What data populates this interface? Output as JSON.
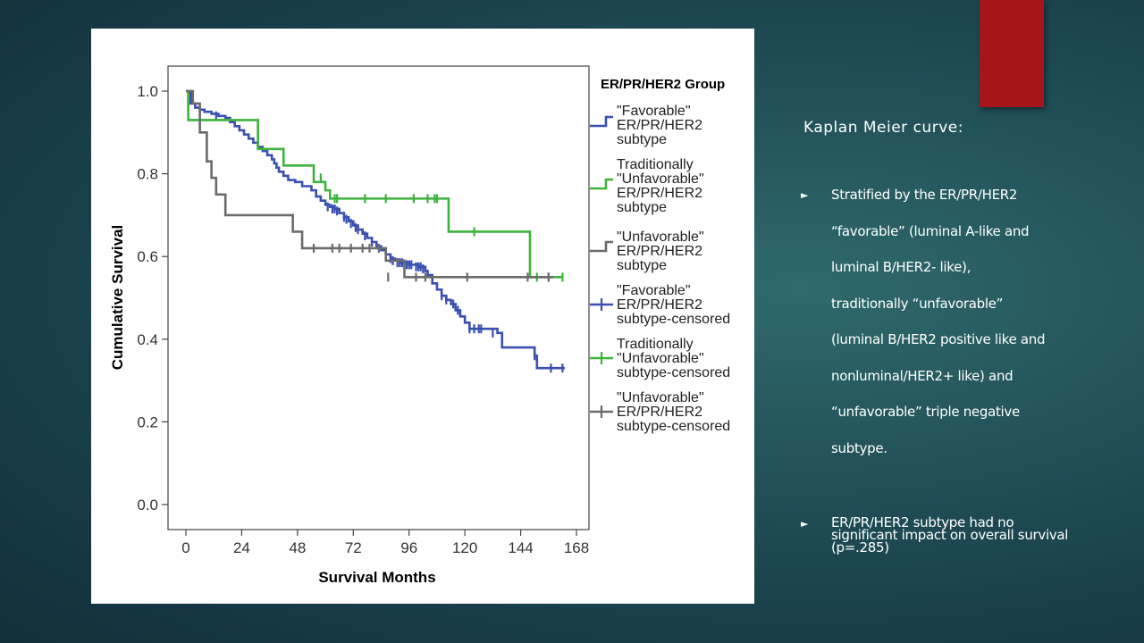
{
  "slide": {
    "title": "Kaplan Meier curve:",
    "bullets": [
      "Stratified by the ER/PR/HER2 “favorable” (luminal A-like and luminal B/HER2- like), traditionally “unfavorable” (luminal B/HER2 positive like and nonluminal/HER2+ like) and “unfavorable” triple negative subtype.",
      "ER/PR/HER2 subtype had no significant impact on overall survival (p=.285)"
    ],
    "accent_color": "#a5161a"
  },
  "chart_data": {
    "type": "line",
    "title": "",
    "xlabel": "Survival Months",
    "ylabel": "Cumulative Survival",
    "xlim": [
      0,
      168
    ],
    "ylim": [
      0,
      1.0
    ],
    "xticks": [
      "0",
      "24",
      "48",
      "72",
      "96",
      "120",
      "144",
      "168"
    ],
    "yticks": [
      "0.0",
      "0.2",
      "0.4",
      "0.6",
      "0.8",
      "1.0"
    ],
    "legend": {
      "title": "ER/PR/HER2 Group",
      "placement": "right",
      "entries": [
        {
          "label": "\"Favorable\" ER/PR/HER2 subtype",
          "color": "#3a50b0",
          "style": "line"
        },
        {
          "label": "Traditionally \"Unfavorable\" ER/PR/HER2 subtype",
          "color": "#3cb33c",
          "style": "line"
        },
        {
          "label": "\"Unfavorable\" ER/PR/HER2 subtype",
          "color": "#6b6b6b",
          "style": "line"
        },
        {
          "label": "\"Favorable\" ER/PR/HER2 subtype-censored",
          "color": "#3a50b0",
          "style": "censor"
        },
        {
          "label": "Traditionally \"Unfavorable\" subtype-censored",
          "color": "#3cb33c",
          "style": "censor"
        },
        {
          "label": "\"Unfavorable\" ER/PR/HER2 subtype-censored",
          "color": "#6b6b6b",
          "style": "censor"
        }
      ]
    },
    "series": [
      {
        "name": "\"Favorable\" ER/PR/HER2 subtype",
        "color": "#3a50b0",
        "steps": [
          [
            0,
            1.0
          ],
          [
            2,
            0.97
          ],
          [
            4,
            0.96
          ],
          [
            6,
            0.955
          ],
          [
            8,
            0.95
          ],
          [
            11,
            0.945
          ],
          [
            14,
            0.94
          ],
          [
            17,
            0.935
          ],
          [
            19,
            0.925
          ],
          [
            21,
            0.915
          ],
          [
            23,
            0.905
          ],
          [
            25,
            0.895
          ],
          [
            27,
            0.885
          ],
          [
            29,
            0.875
          ],
          [
            31,
            0.865
          ],
          [
            33,
            0.855
          ],
          [
            35,
            0.845
          ],
          [
            37,
            0.835
          ],
          [
            38,
            0.825
          ],
          [
            39,
            0.815
          ],
          [
            40,
            0.805
          ],
          [
            42,
            0.795
          ],
          [
            44,
            0.785
          ],
          [
            47,
            0.78
          ],
          [
            50,
            0.77
          ],
          [
            54,
            0.76
          ],
          [
            56,
            0.745
          ],
          [
            58,
            0.735
          ],
          [
            60,
            0.725
          ],
          [
            62,
            0.72
          ],
          [
            64,
            0.715
          ],
          [
            66,
            0.705
          ],
          [
            68,
            0.695
          ],
          [
            70,
            0.685
          ],
          [
            72,
            0.675
          ],
          [
            74,
            0.665
          ],
          [
            76,
            0.655
          ],
          [
            78,
            0.645
          ],
          [
            80,
            0.635
          ],
          [
            82,
            0.625
          ],
          [
            84,
            0.615
          ],
          [
            86,
            0.605
          ],
          [
            88,
            0.595
          ],
          [
            90,
            0.59
          ],
          [
            92,
            0.585
          ],
          [
            96,
            0.58
          ],
          [
            100,
            0.575
          ],
          [
            103,
            0.565
          ],
          [
            104,
            0.555
          ],
          [
            106,
            0.535
          ],
          [
            108,
            0.52
          ],
          [
            110,
            0.505
          ],
          [
            112,
            0.495
          ],
          [
            114,
            0.485
          ],
          [
            116,
            0.47
          ],
          [
            118,
            0.455
          ],
          [
            120,
            0.44
          ],
          [
            122,
            0.425
          ],
          [
            134,
            0.415
          ],
          [
            136,
            0.38
          ],
          [
            150,
            0.36
          ],
          [
            151,
            0.33
          ],
          [
            163,
            0.33
          ]
        ],
        "censored": [
          [
            13,
            0.94
          ],
          [
            61,
            0.72
          ],
          [
            63,
            0.715
          ],
          [
            64,
            0.715
          ],
          [
            65,
            0.71
          ],
          [
            68,
            0.695
          ],
          [
            69,
            0.69
          ],
          [
            71,
            0.68
          ],
          [
            73,
            0.67
          ],
          [
            74,
            0.665
          ],
          [
            77,
            0.65
          ],
          [
            80,
            0.635
          ],
          [
            86,
            0.605
          ],
          [
            88,
            0.595
          ],
          [
            89,
            0.59
          ],
          [
            91,
            0.585
          ],
          [
            92,
            0.585
          ],
          [
            93,
            0.585
          ],
          [
            94,
            0.58
          ],
          [
            95,
            0.58
          ],
          [
            96,
            0.58
          ],
          [
            97,
            0.58
          ],
          [
            99,
            0.575
          ],
          [
            100,
            0.575
          ],
          [
            101,
            0.575
          ],
          [
            102,
            0.57
          ],
          [
            110,
            0.505
          ],
          [
            112,
            0.495
          ],
          [
            115,
            0.485
          ],
          [
            117,
            0.47
          ],
          [
            122,
            0.425
          ],
          [
            124,
            0.425
          ],
          [
            126,
            0.425
          ],
          [
            127,
            0.425
          ],
          [
            132,
            0.415
          ],
          [
            150,
            0.36
          ],
          [
            157,
            0.33
          ],
          [
            162,
            0.33
          ]
        ]
      },
      {
        "name": "Traditionally \"Unfavorable\" ER/PR/HER2 subtype",
        "color": "#3cb33c",
        "steps": [
          [
            0,
            1.0
          ],
          [
            1,
            0.93
          ],
          [
            10,
            0.93
          ],
          [
            31,
            0.86
          ],
          [
            42,
            0.82
          ],
          [
            55,
            0.78
          ],
          [
            60,
            0.76
          ],
          [
            62,
            0.74
          ],
          [
            113,
            0.66
          ],
          [
            148,
            0.55
          ],
          [
            162,
            0.55
          ]
        ],
        "censored": [
          [
            58,
            0.79
          ],
          [
            64,
            0.74
          ],
          [
            65,
            0.74
          ],
          [
            77,
            0.74
          ],
          [
            86,
            0.74
          ],
          [
            98,
            0.74
          ],
          [
            104,
            0.74
          ],
          [
            107,
            0.74
          ],
          [
            108,
            0.74
          ],
          [
            124,
            0.66
          ],
          [
            151,
            0.55
          ],
          [
            156,
            0.55
          ],
          [
            162,
            0.55
          ]
        ]
      },
      {
        "name": "\"Unfavorable\" ER/PR/HER2 subtype",
        "color": "#6b6b6b",
        "steps": [
          [
            0,
            1.0
          ],
          [
            3,
            0.97
          ],
          [
            6,
            0.9
          ],
          [
            9,
            0.83
          ],
          [
            11,
            0.79
          ],
          [
            13,
            0.75
          ],
          [
            17,
            0.7
          ],
          [
            46,
            0.66
          ],
          [
            50,
            0.62
          ],
          [
            86,
            0.59
          ],
          [
            94,
            0.55
          ],
          [
            158,
            0.55
          ]
        ],
        "censored": [
          [
            55,
            0.62
          ],
          [
            63,
            0.62
          ],
          [
            66,
            0.62
          ],
          [
            71,
            0.62
          ],
          [
            76,
            0.62
          ],
          [
            79,
            0.62
          ],
          [
            83,
            0.62
          ],
          [
            87,
            0.55
          ],
          [
            99,
            0.55
          ],
          [
            103,
            0.55
          ],
          [
            121,
            0.55
          ],
          [
            147,
            0.55
          ],
          [
            156,
            0.55
          ]
        ]
      }
    ],
    "grid": false
  }
}
